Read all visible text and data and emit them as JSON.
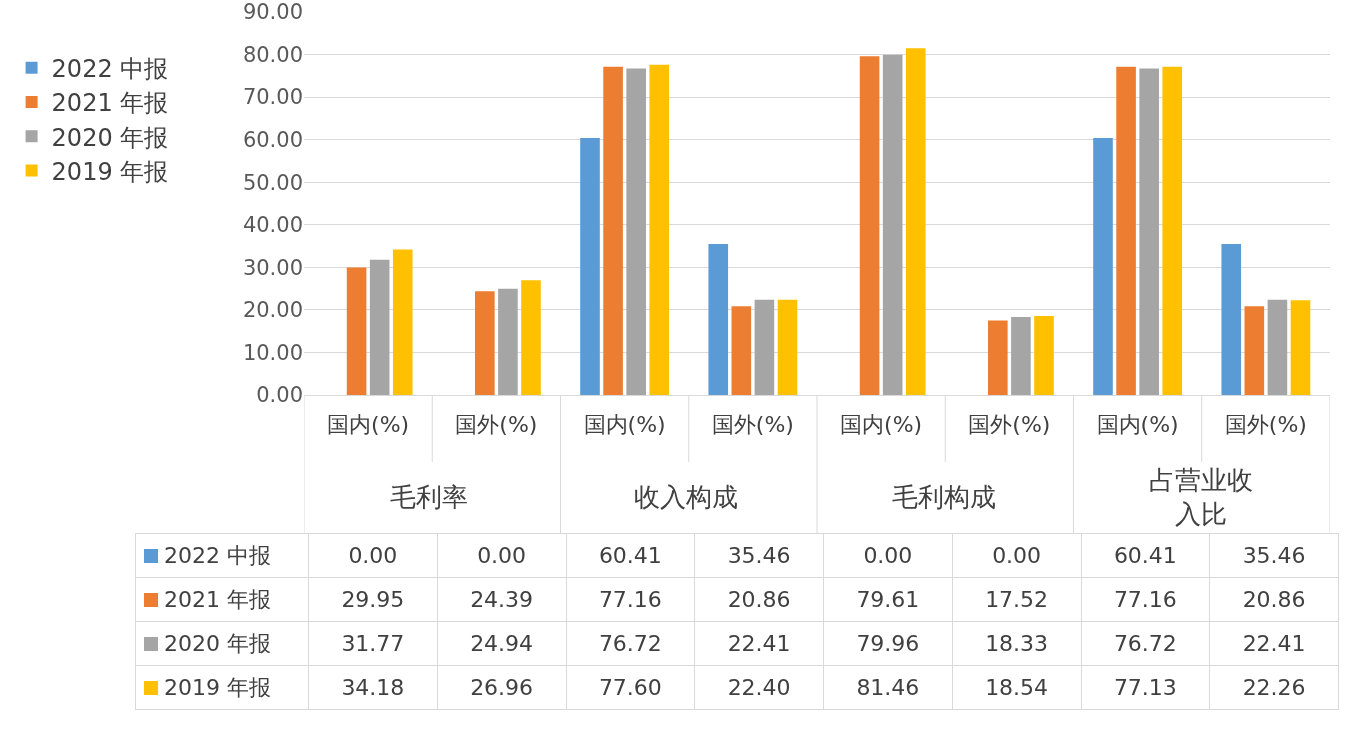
{
  "chart_data": {
    "type": "bar",
    "categories": [
      "国内(%)",
      "国外(%)",
      "国内(%)",
      "国外(%)",
      "国内(%)",
      "国外(%)",
      "国内(%)",
      "国外(%)"
    ],
    "annotations": [
      "毛利率",
      "收入构成",
      "毛利构成",
      "占营业收入比"
    ],
    "series": [
      {
        "name": "2022 中报",
        "color": "#5b9bd5",
        "values": [
          0,
          0,
          60.41,
          35.46,
          0,
          0,
          60.41,
          35.46
        ],
        "value_labels": [
          "0.00",
          "0.00",
          "60.41",
          "35.46",
          "0.00",
          "0.00",
          "60.41",
          "35.46"
        ]
      },
      {
        "name": "2021 年报",
        "color": "#ed7d31",
        "values": [
          29.95,
          24.39,
          77.16,
          20.86,
          79.61,
          17.52,
          77.16,
          20.86
        ],
        "value_labels": [
          "29.95",
          "24.39",
          "77.16",
          "20.86",
          "79.61",
          "17.52",
          "77.16",
          "20.86"
        ]
      },
      {
        "name": "2020 年报",
        "color": "#a5a5a5",
        "values": [
          31.77,
          24.94,
          76.72,
          22.41,
          79.96,
          18.33,
          76.72,
          22.41
        ],
        "value_labels": [
          "31.77",
          "24.94",
          "76.72",
          "22.41",
          "79.96",
          "18.33",
          "76.72",
          "22.41"
        ]
      },
      {
        "name": "2019 年报",
        "color": "#ffc000",
        "values": [
          34.18,
          26.96,
          77.6,
          22.4,
          81.46,
          18.54,
          77.13,
          22.26
        ],
        "value_labels": [
          "34.18",
          "26.96",
          "77.60",
          "22.40",
          "81.46",
          "18.54",
          "77.13",
          "22.26"
        ]
      }
    ],
    "ylim": [
      0,
      90
    ],
    "yticks": [
      {
        "value": 0,
        "label": "0.00"
      },
      {
        "value": 10,
        "label": "10.00"
      },
      {
        "value": 20,
        "label": "20.00"
      },
      {
        "value": 30,
        "label": "30.00"
      },
      {
        "value": 40,
        "label": "40.00"
      },
      {
        "value": 50,
        "label": "50.00"
      },
      {
        "value": 60,
        "label": "60.00"
      },
      {
        "value": 70,
        "label": "70.00"
      },
      {
        "value": 80,
        "label": "80.00"
      },
      {
        "value": 90,
        "label": "90.00"
      }
    ],
    "grid": "y",
    "legend": "left"
  }
}
